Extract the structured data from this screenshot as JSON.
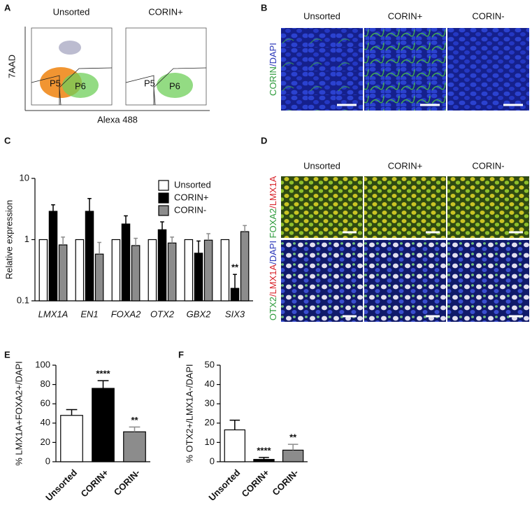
{
  "panels": {
    "A": {
      "panel": "A",
      "titles": [
        "Unsorted",
        "CORIN+"
      ],
      "ylabel": "7AAD",
      "xlabel": "Alexa 488",
      "gates": [
        "P5",
        "P6"
      ]
    },
    "B": {
      "panel": "B",
      "columns": [
        "Unsorted",
        "CORIN+",
        "CORIN-"
      ],
      "row_label": [
        {
          "text": "CORIN",
          "color": "#2e9b3c"
        },
        {
          "text": "/DAPI",
          "color": "#2a36b8"
        }
      ]
    },
    "D": {
      "panel": "D",
      "columns": [
        "Unsorted",
        "CORIN+",
        "CORIN-"
      ],
      "row_labels": [
        [
          {
            "text": "FOXA2",
            "color": "#2e9b3c"
          },
          {
            "text": "/LMX1A",
            "color": "#d8232a"
          }
        ],
        [
          {
            "text": "OTX2",
            "color": "#2e9b3c"
          },
          {
            "text": "/LMX1A",
            "color": "#d8232a"
          },
          {
            "text": "/DAPI",
            "color": "#2a36b8"
          }
        ]
      ]
    }
  },
  "chart_data": [
    {
      "panel": "C",
      "type": "bar",
      "ylabel": "Relative expression",
      "log_scale": true,
      "categories": [
        "LMX1A",
        "EN1",
        "FOXA2",
        "OTX2",
        "GBX2",
        "SIX3"
      ],
      "series": [
        {
          "name": "Unsorted",
          "color": "#ffffff",
          "values": [
            1,
            1,
            1,
            1,
            1,
            1
          ]
        },
        {
          "name": "CORIN+",
          "color": "#000000",
          "values": [
            2.9,
            2.9,
            1.8,
            1.45,
            0.6,
            0.16
          ],
          "errors": [
            0.8,
            1.8,
            0.65,
            0.5,
            0.35,
            0.11
          ],
          "significance": [
            null,
            null,
            null,
            null,
            null,
            "**"
          ]
        },
        {
          "name": "CORIN-",
          "color": "#8c8c8c",
          "values": [
            0.82,
            0.58,
            0.8,
            0.88,
            0.98,
            1.35
          ],
          "errors": [
            0.28,
            0.32,
            0.25,
            0.22,
            0.27,
            0.35
          ]
        }
      ],
      "ylim": [
        0.1,
        10
      ],
      "yticks": [
        0.1,
        1,
        10
      ],
      "legend": "upper right"
    },
    {
      "panel": "E",
      "type": "bar",
      "ylabel": "% LMX1A+FOXA2+/DAPI",
      "categories": [
        "Unsorted",
        "CORIN+",
        "CORIN-"
      ],
      "values": [
        48,
        76,
        31
      ],
      "errors": [
        6,
        8,
        5
      ],
      "colors": [
        "#ffffff",
        "#000000",
        "#8c8c8c"
      ],
      "significance": [
        null,
        "****",
        "**"
      ],
      "ylim": [
        0,
        100
      ],
      "yticks": [
        0,
        20,
        40,
        60,
        80,
        100
      ]
    },
    {
      "panel": "F",
      "type": "bar",
      "ylabel": "% OTX2+/LMX1A-/DAPI",
      "categories": [
        "Unsorted",
        "CORIN+",
        "CORIN-"
      ],
      "values": [
        16.5,
        1.2,
        6
      ],
      "errors": [
        5,
        1,
        3
      ],
      "colors": [
        "#ffffff",
        "#000000",
        "#8c8c8c"
      ],
      "significance": [
        null,
        "****",
        "**"
      ],
      "ylim": [
        0,
        50
      ],
      "yticks": [
        0,
        10,
        20,
        30,
        40,
        50
      ]
    }
  ]
}
